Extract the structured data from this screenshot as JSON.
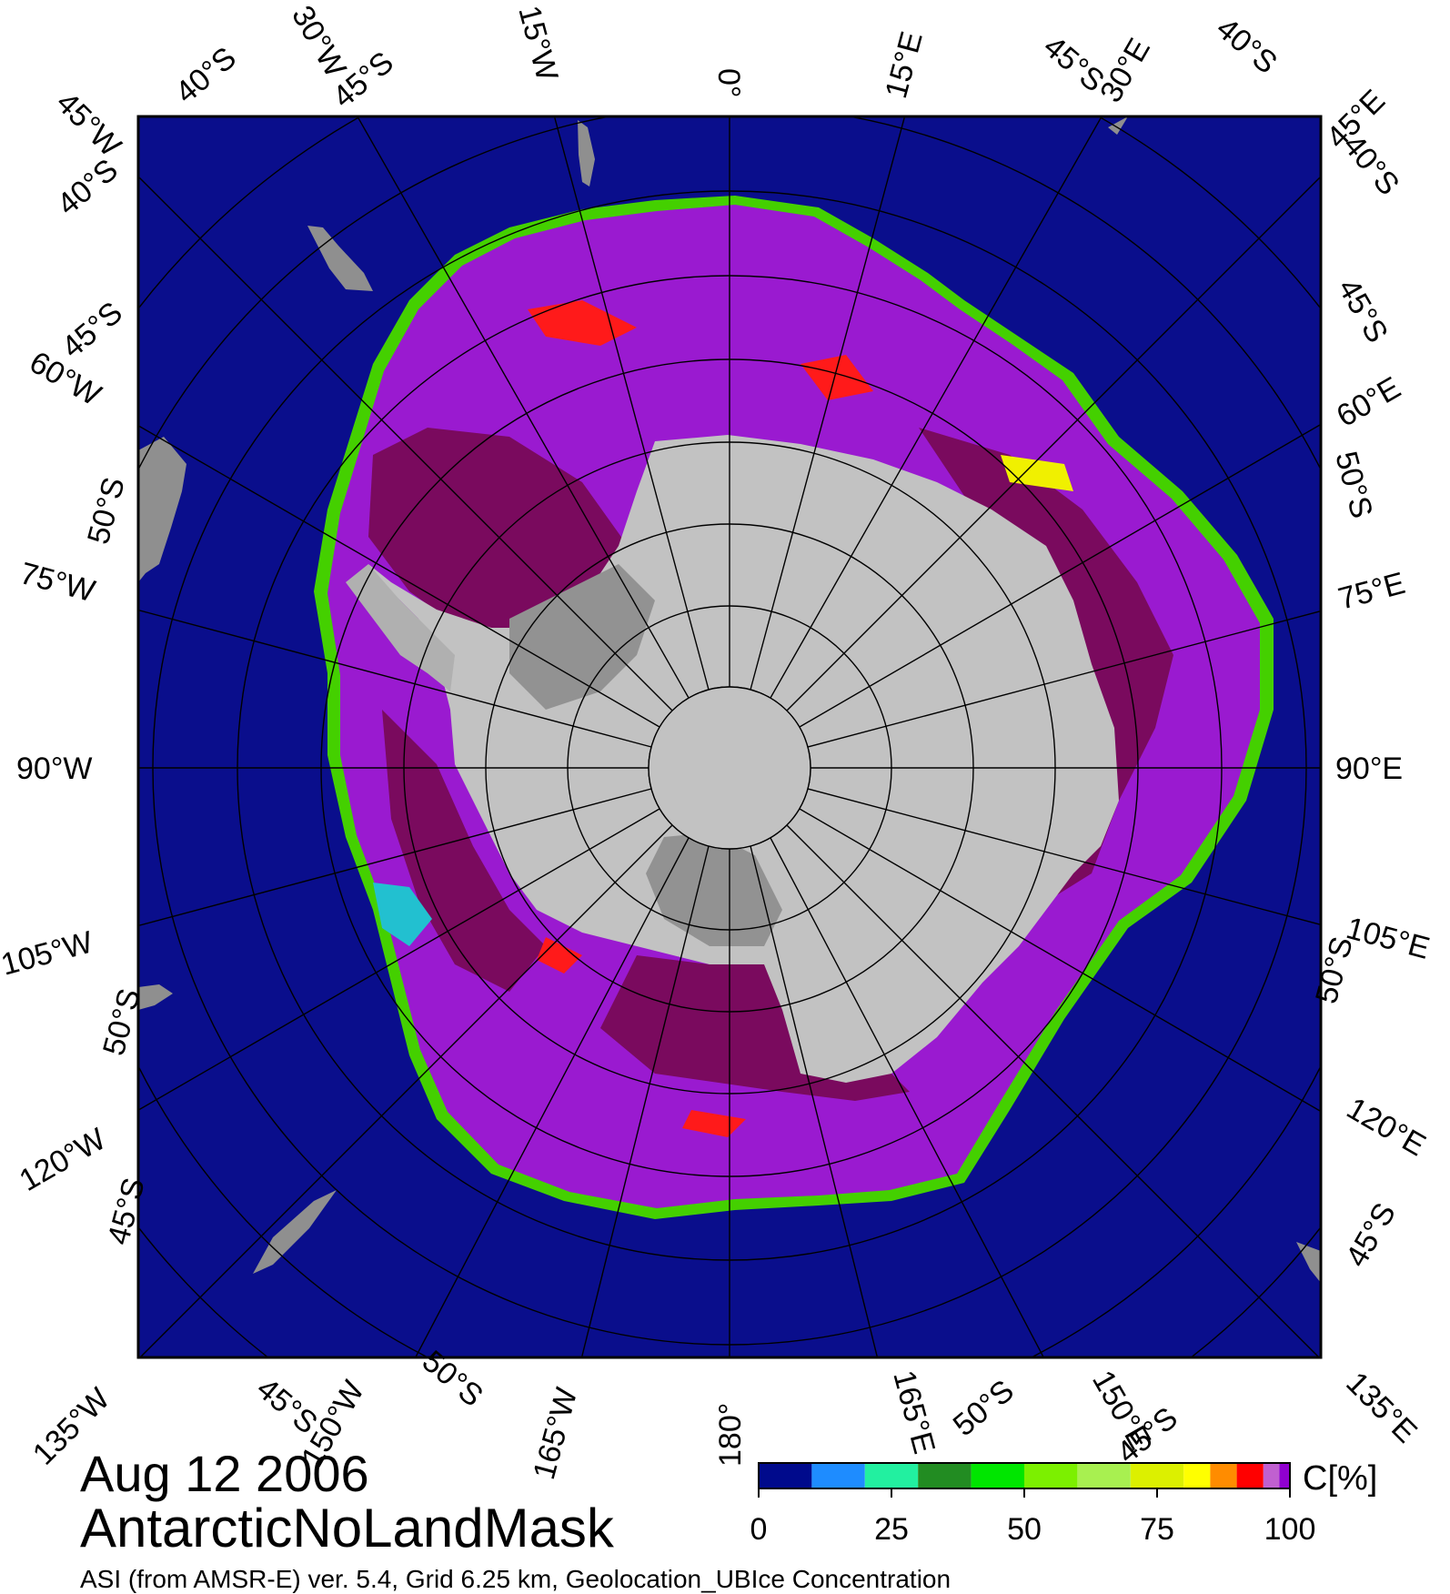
{
  "title": {
    "date": "Aug 12 2006",
    "product": "AntarcticNoLandMask",
    "credit": "ASI (from AMSR-E) ver. 5.4,  Grid 6.25 km, Geolocation_UBIce Concentration"
  },
  "map": {
    "projection": "south-polar-stereographic",
    "colors": {
      "ocean": "#0a0e8c",
      "ice_high": "#7a0a5e",
      "ice_mid": "#9a1ad0",
      "ice_edge_green": "#44d000",
      "ice_edge_yellow": "#f0f000",
      "ice_red": "#ff1a1a",
      "antarctica": "#c2c2c2",
      "ice_shelf": "#929292",
      "land_gray": "#8f8f8f",
      "grid_line": "#000000"
    }
  },
  "labels": {
    "top": [
      {
        "id": "45W",
        "text": "45°W"
      },
      {
        "id": "40S_a",
        "text": "40°S"
      },
      {
        "id": "30W",
        "text": "30°W"
      },
      {
        "id": "45S_a",
        "text": "45°S"
      },
      {
        "id": "15W",
        "text": "15°W"
      },
      {
        "id": "0",
        "text": "0°"
      },
      {
        "id": "15E",
        "text": "15°E"
      },
      {
        "id": "45S_b",
        "text": "45°S"
      },
      {
        "id": "30E",
        "text": "30°E"
      },
      {
        "id": "40S_b",
        "text": "40°S"
      },
      {
        "id": "45E",
        "text": "45°E"
      }
    ],
    "left": [
      {
        "id": "40S_c",
        "text": "40°S"
      },
      {
        "id": "45S_c",
        "text": "45°S"
      },
      {
        "id": "60W",
        "text": "60°W"
      },
      {
        "id": "50S_a",
        "text": "50°S"
      },
      {
        "id": "75W",
        "text": "75°W"
      },
      {
        "id": "90W",
        "text": "90°W"
      },
      {
        "id": "105W",
        "text": "105°W"
      },
      {
        "id": "50S_b",
        "text": "50°S"
      },
      {
        "id": "120W",
        "text": "120°W"
      },
      {
        "id": "45S_d",
        "text": "45°S"
      }
    ],
    "right": [
      {
        "id": "40S_d",
        "text": "40°S"
      },
      {
        "id": "45S_e",
        "text": "45°S"
      },
      {
        "id": "60E",
        "text": "60°E"
      },
      {
        "id": "50S_c",
        "text": "50°S"
      },
      {
        "id": "75E",
        "text": "75°E"
      },
      {
        "id": "90E",
        "text": "90°E"
      },
      {
        "id": "105E",
        "text": "105°E"
      },
      {
        "id": "50S_d",
        "text": "50°S"
      },
      {
        "id": "120E",
        "text": "120°E"
      },
      {
        "id": "45S_f",
        "text": "45°S"
      }
    ],
    "bottom": [
      {
        "id": "135W",
        "text": "135°W"
      },
      {
        "id": "45S_g",
        "text": "45°S"
      },
      {
        "id": "150W",
        "text": "150°W"
      },
      {
        "id": "50S_e",
        "text": "50°S"
      },
      {
        "id": "165W",
        "text": "165°W"
      },
      {
        "id": "180",
        "text": "180°"
      },
      {
        "id": "165E",
        "text": "165°E"
      },
      {
        "id": "50S_f",
        "text": "50°S"
      },
      {
        "id": "150E",
        "text": "150°E"
      },
      {
        "id": "45S_h",
        "text": "45°S"
      },
      {
        "id": "135E",
        "text": "135°E"
      }
    ]
  },
  "colorbar": {
    "unit": "C[%]",
    "ticks": [
      "0",
      "25",
      "50",
      "75",
      "100"
    ],
    "range": [
      0,
      100
    ],
    "colors": [
      "#000a8c",
      "#1e8cff",
      "#22f0a0",
      "#228c22",
      "#00e600",
      "#7cf000",
      "#a8f050",
      "#dcf000",
      "#ffff00",
      "#ff8c00",
      "#ff0000",
      "#c060d0",
      "#9000d0"
    ]
  }
}
